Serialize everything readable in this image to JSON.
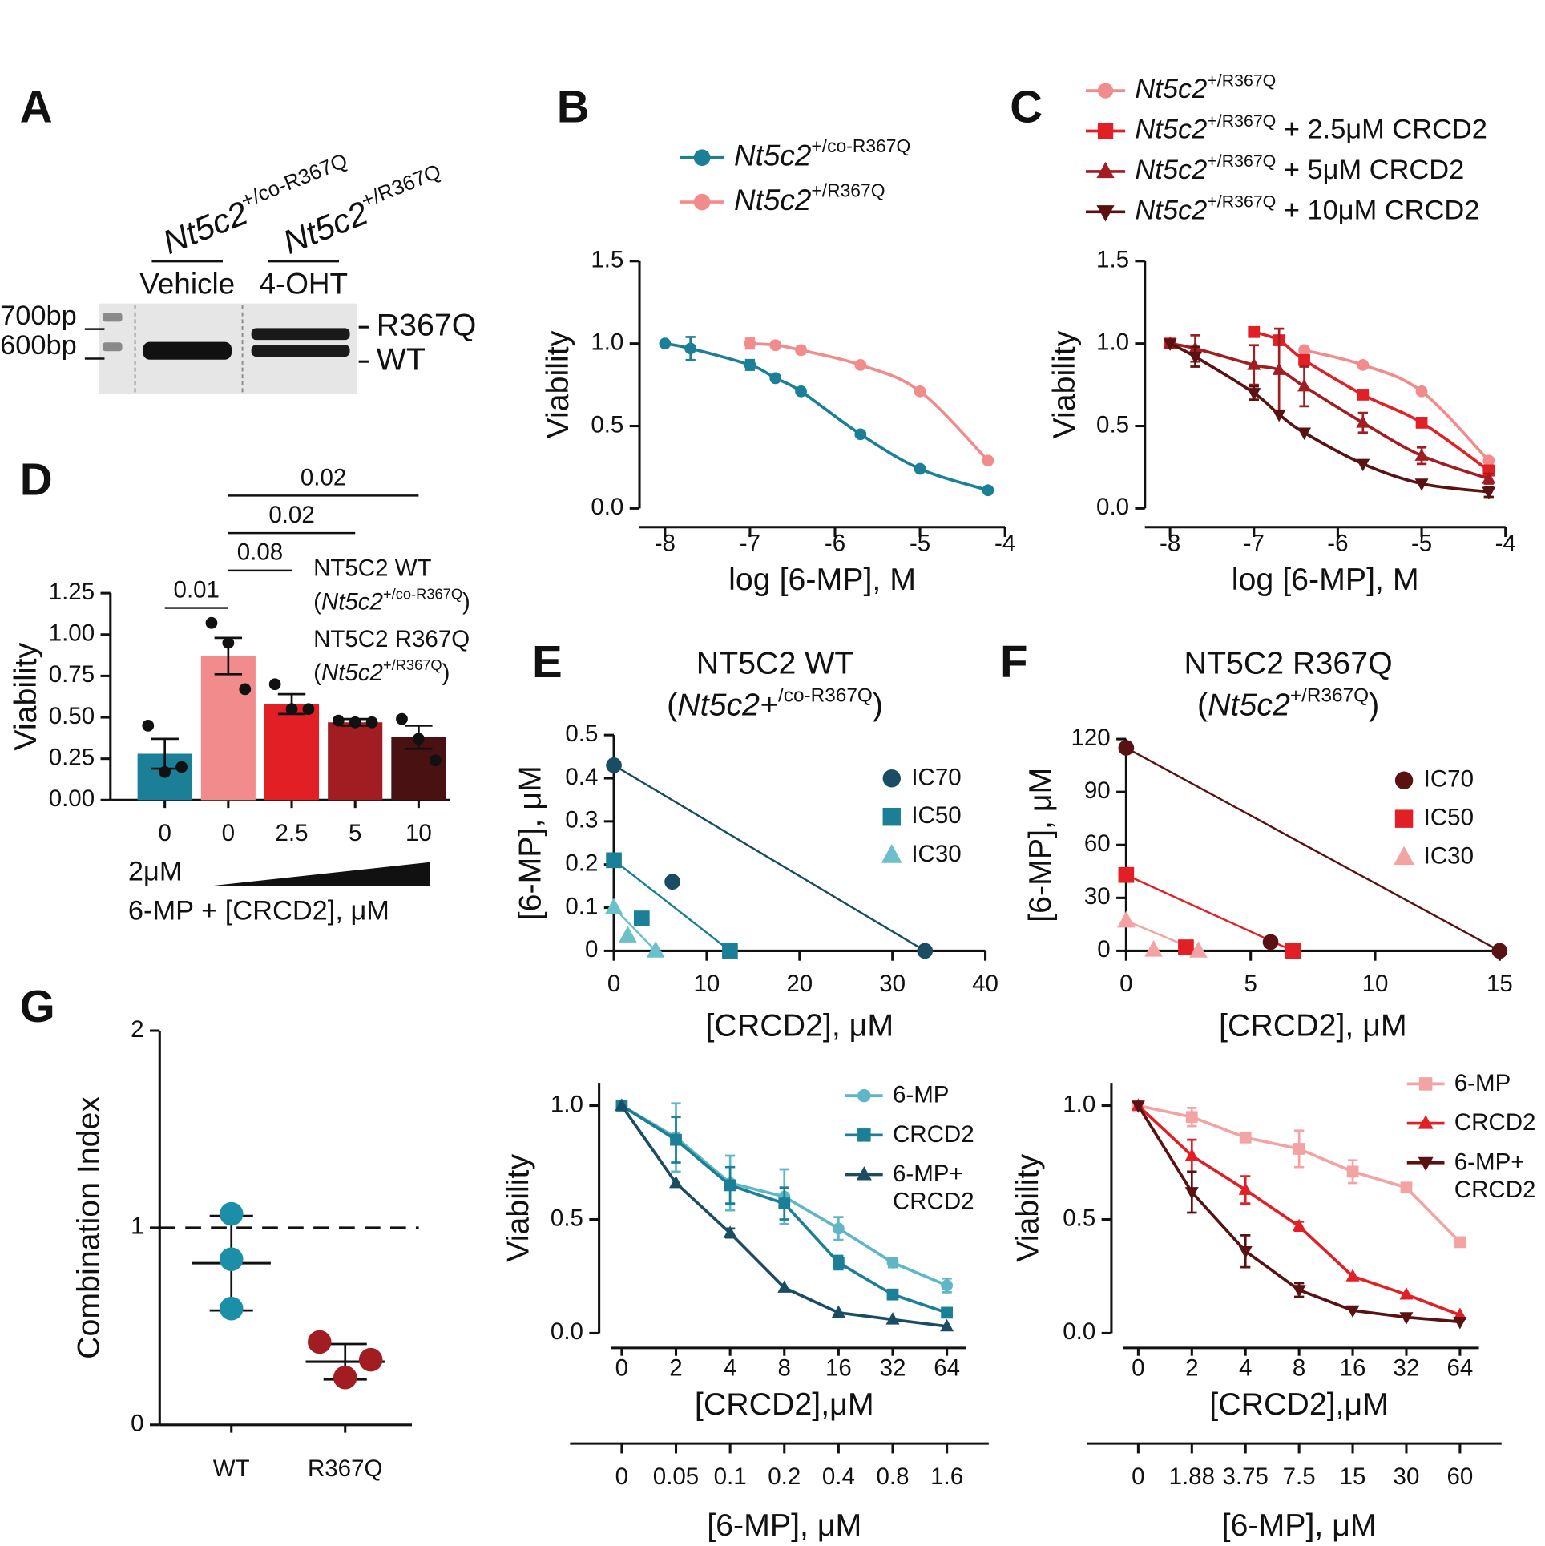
{
  "gel": {
    "panel": "A",
    "lanes": [
      {
        "genotype": "Nt5c2",
        "superscript": "+/co-R367Q",
        "treatment": "Vehicle"
      },
      {
        "genotype": "Nt5c2",
        "superscript": "+/R367Q",
        "treatment": "4-OHT"
      }
    ],
    "ladder": [
      "700bp",
      "600bp"
    ],
    "bands": [
      "R367Q",
      "WT"
    ]
  },
  "chart_data": [
    {
      "panel": "B",
      "type": "line",
      "curve": "smooth",
      "x": [
        -8,
        -7.7,
        -7,
        -6.7,
        -6.4,
        -5.7,
        -5,
        -4.2
      ],
      "xlim": [
        -8.3,
        -4
      ],
      "xticks": [
        -8,
        -7,
        -6,
        -5,
        -4
      ],
      "ylim": [
        0,
        1.5
      ],
      "yticks": [
        {
          "value": 0,
          "label": "0.0"
        },
        0.5,
        {
          "value": 1,
          "label": "1.0"
        },
        1.5
      ],
      "xlabel": "log [6-MP], M",
      "ylabel": "Viability",
      "series": [
        {
          "name": "Nt5c2",
          "superscript": "+/co-R367Q",
          "color": "#1b7f97",
          "marker": "circle",
          "values": [
            1,
            0.97,
            0.87,
            0.79,
            0.71,
            0.45,
            0.24,
            0.11
          ],
          "errors": [
            null,
            0.07,
            0.03,
            null,
            null,
            null,
            null,
            null
          ]
        },
        {
          "name": "Nt5c2",
          "superscript": "+/R367Q",
          "color": "#f28b8b",
          "marker": "circle",
          "values": [
            null,
            null,
            1,
            0.99,
            0.96,
            0.87,
            0.71,
            0.29
          ],
          "errors": [
            null,
            null,
            0.03,
            null,
            0.02,
            null,
            null,
            null
          ]
        }
      ]
    },
    {
      "panel": "C",
      "type": "line",
      "curve": "smooth",
      "x": [
        -8,
        -7.7,
        -7,
        -6.7,
        -6.4,
        -5.7,
        -5,
        -4.2
      ],
      "xlim": [
        -8.3,
        -4
      ],
      "xticks": [
        -8,
        -7,
        -6,
        -5,
        -4
      ],
      "ylim": [
        0,
        1.5
      ],
      "yticks": [
        {
          "value": 0,
          "label": "0.0"
        },
        0.5,
        {
          "value": 1,
          "label": "1.0"
        },
        1.5
      ],
      "xlabel": "log [6-MP], M",
      "ylabel": "Viability",
      "series": [
        {
          "name": "Nt5c2",
          "superscript": "+/R367Q",
          "color": "#f28b8b",
          "marker": "circle",
          "values": [
            1,
            null,
            null,
            null,
            0.96,
            0.87,
            0.71,
            0.29
          ],
          "errors": [
            null,
            null,
            null,
            null,
            null,
            null,
            null,
            null
          ]
        },
        {
          "name": "Nt5c2",
          "superscript": "+/R367Q",
          "suffix": " + 2.5μM CRCD2",
          "color": "#e31f26",
          "marker": "square",
          "values": [
            1,
            null,
            1.07,
            1.02,
            0.9,
            0.69,
            0.52,
            0.23
          ],
          "errors": [
            null,
            null,
            null,
            null,
            null,
            null,
            null,
            0.03
          ]
        },
        {
          "name": "Nt5c2",
          "superscript": "+/R367Q",
          "suffix": " + 5μM CRCD2",
          "color": "#a21d22",
          "marker": "triangle",
          "values": [
            1,
            0.97,
            0.87,
            0.84,
            0.74,
            0.52,
            0.32,
            0.18
          ],
          "errors": [
            null,
            0.08,
            0.12,
            0.25,
            0.12,
            0.06,
            0.05,
            0.03
          ]
        },
        {
          "name": "Nt5c2",
          "superscript": "+/R367Q",
          "suffix": " + 10μM CRCD2",
          "color": "#5a1112",
          "marker": "triangle-down",
          "values": [
            1,
            0.92,
            0.7,
            0.57,
            0.46,
            0.27,
            0.15,
            0.1
          ],
          "errors": [
            null,
            0.06,
            0.04,
            null,
            null,
            null,
            null,
            0.03
          ]
        }
      ]
    },
    {
      "panel": "D",
      "type": "bar",
      "categories": [
        "0",
        "0",
        "2.5",
        "5",
        "10"
      ],
      "values": [
        0.28,
        0.87,
        0.58,
        0.47,
        0.38
      ],
      "errors": [
        0.09,
        0.11,
        0.06,
        0.02,
        0.07
      ],
      "points": [
        [
          0.45,
          0.17,
          0.2
        ],
        [
          1.07,
          0.95,
          0.67
        ],
        [
          0.7,
          0.55,
          0.55
        ],
        [
          0.48,
          0.47,
          0.47
        ],
        [
          0.49,
          0.37,
          0.24
        ]
      ],
      "colors": [
        "#1b7f97",
        "#f28b8b",
        "#e31f26",
        "#a21d22",
        "#4a1112"
      ],
      "ylim": [
        0,
        1.25
      ],
      "yticks": [
        {
          "value": 0,
          "label": "0.00"
        },
        0.25,
        {
          "value": 0.5,
          "label": "0.50"
        },
        0.75,
        {
          "value": 1,
          "label": "1.00"
        },
        1.25
      ],
      "ylabel": "Viability",
      "dose_label": "2μM",
      "xlabel": "6-MP + [CRCD2], μM",
      "comparisons": [
        {
          "pair": [
            0,
            1
          ],
          "label": "0.01"
        },
        {
          "pair": [
            1,
            2
          ],
          "label": "0.08"
        },
        {
          "pair": [
            1,
            3
          ],
          "label": "0.02"
        },
        {
          "pair": [
            1,
            4
          ],
          "label": "0.02"
        }
      ],
      "groups_legend": [
        {
          "title": "NT5C2 WT",
          "prefix": "(",
          "name": "Nt5c2",
          "superscript": "+/co-R367Q",
          "suffix": ")",
          "color": "#1b7f97"
        },
        {
          "title": "NT5C2 R367Q",
          "prefix": "(",
          "name": "Nt5c2",
          "superscript": "+/R367Q",
          "suffix": ")",
          "color": "#d91f26"
        }
      ]
    },
    {
      "panel": "E",
      "type": "scatter",
      "title": "NT5C2 WT",
      "subtitle": {
        "prefix": "(",
        "name": "Nt5c2+",
        "superscript": "/co-R367Q",
        "suffix": ")"
      },
      "title_color": "#1b6f8a",
      "xlim": [
        0,
        40
      ],
      "xticks": [
        0,
        10,
        20,
        30,
        40
      ],
      "ylim": [
        0,
        0.5
      ],
      "yticks": [
        0,
        0.1,
        0.2,
        0.3,
        0.4,
        0.5
      ],
      "xlabel": "[CRCD2], μM",
      "ylabel": "[6-MP], μM",
      "series": [
        {
          "name": "IC70",
          "color": "#1a4d63",
          "marker": "circle",
          "x": [
            0,
            33.5,
            6.3
          ],
          "values": [
            0.43,
            0,
            0.16
          ]
        },
        {
          "name": "IC50",
          "color": "#1b7f97",
          "marker": "square",
          "x": [
            0,
            12.5,
            3
          ],
          "values": [
            0.21,
            0,
            0.075
          ]
        },
        {
          "name": "IC30",
          "color": "#6cc0cc",
          "marker": "triangle",
          "x": [
            0,
            4.5,
            1.5
          ],
          "values": [
            0.1,
            0,
            0.035
          ]
        }
      ]
    },
    {
      "panel": "F",
      "type": "scatter",
      "title": "NT5C2 R367Q",
      "subtitle": {
        "prefix": "(",
        "name": "Nt5c2",
        "superscript": "+/R367Q",
        "suffix": ")"
      },
      "title_color": "#b01e24",
      "xlim": [
        0,
        15
      ],
      "xticks": [
        0,
        5,
        10,
        15
      ],
      "ylim": [
        0,
        120
      ],
      "yticks": [
        0,
        30,
        60,
        90,
        120
      ],
      "xlabel": "[CRCD2], μM",
      "ylabel": "[6-MP], μM",
      "series": [
        {
          "name": "IC70",
          "color": "#5a1112",
          "marker": "circle",
          "x": [
            0,
            15,
            5.8
          ],
          "values": [
            115,
            0,
            5
          ]
        },
        {
          "name": "IC50",
          "color": "#e31f26",
          "marker": "square",
          "x": [
            0,
            6.7,
            2.4
          ],
          "values": [
            43,
            0,
            2
          ]
        },
        {
          "name": "IC30",
          "color": "#f4a3a3",
          "marker": "triangle",
          "x": [
            0,
            2.9,
            1.1
          ],
          "values": [
            17,
            0,
            0.5
          ]
        }
      ]
    },
    {
      "panel": "G",
      "type": "strip",
      "categories": [
        "WT",
        "R367Q"
      ],
      "points": [
        [
          1.07,
          0.84,
          0.59
        ],
        [
          0.42,
          0.24,
          0.33
        ]
      ],
      "means": [
        0.82,
        0.32
      ],
      "errors": [
        0.24,
        0.09
      ],
      "colors": [
        "#1b8fa8",
        "#a21d22"
      ],
      "ylim": [
        0,
        2
      ],
      "yticks": [
        0,
        1,
        2
      ],
      "reference_line": 1,
      "ylabel": "Combination Index"
    },
    {
      "type": "line",
      "curve": "straight",
      "categories": [
        "0",
        "2",
        "4",
        "8",
        "16",
        "32",
        "64"
      ],
      "x2_categories": [
        "0",
        "0.05",
        "0.1",
        "0.2",
        "0.4",
        "0.8",
        "1.6"
      ],
      "ylim": [
        0,
        1.1
      ],
      "yticks": [
        {
          "value": 0,
          "label": "0.0"
        },
        0.5,
        {
          "value": 1,
          "label": "1.0"
        }
      ],
      "xlabel": "[CRCD2],μM",
      "x2label": "[6-MP], μM",
      "ylabel": "Viability",
      "series": [
        {
          "name": "6-MP",
          "color": "#5fb7c6",
          "marker": "circle",
          "values": [
            1,
            0.86,
            0.66,
            0.6,
            0.46,
            0.31,
            0.21
          ],
          "errors": [
            null,
            0.15,
            0.12,
            0.12,
            0.05,
            0.02,
            0.03
          ]
        },
        {
          "name": "CRCD2",
          "color": "#1b7f97",
          "marker": "square",
          "values": [
            1,
            0.85,
            0.65,
            0.57,
            0.31,
            0.17,
            0.09
          ],
          "errors": [
            null,
            0.1,
            0.08,
            0.07,
            0.03,
            0.02,
            null
          ]
        },
        {
          "name": "6-MP+ CRCD2",
          "color": "#1a4d63",
          "marker": "triangle",
          "values": [
            1,
            0.66,
            0.44,
            0.2,
            0.09,
            0.06,
            0.03
          ],
          "errors": [
            null,
            null,
            0.02,
            null,
            null,
            null,
            null
          ]
        }
      ]
    },
    {
      "type": "line",
      "curve": "straight",
      "categories": [
        "0",
        "2",
        "4",
        "8",
        "16",
        "32",
        "64"
      ],
      "x2_categories": [
        "0",
        "1.88",
        "3.75",
        "7.5",
        "15",
        "30",
        "60"
      ],
      "ylim": [
        0,
        1.1
      ],
      "yticks": [
        {
          "value": 0,
          "label": "0.0"
        },
        0.5,
        {
          "value": 1,
          "label": "1.0"
        }
      ],
      "xlabel": "[CRCD2],μM",
      "x2label": "[6-MP], μM",
      "ylabel": "Viability",
      "series": [
        {
          "name": "6-MP",
          "color": "#f4a3a3",
          "marker": "square",
          "values": [
            1,
            0.95,
            0.86,
            0.81,
            0.71,
            0.64,
            0.4
          ],
          "errors": [
            null,
            0.04,
            0.02,
            0.08,
            0.05,
            null,
            0.02
          ]
        },
        {
          "name": "CRCD2",
          "color": "#e31f26",
          "marker": "triangle",
          "values": [
            1,
            0.78,
            0.63,
            0.47,
            0.25,
            0.17,
            0.08
          ],
          "errors": [
            null,
            0.07,
            0.06,
            0.02,
            null,
            null,
            null
          ]
        },
        {
          "name": "6-MP+ CRCD2",
          "color": "#5a1112",
          "marker": "triangle-down",
          "values": [
            1,
            0.62,
            0.36,
            0.19,
            0.1,
            0.07,
            0.05
          ],
          "errors": [
            null,
            0.09,
            0.07,
            0.03,
            null,
            null,
            null
          ]
        }
      ]
    }
  ]
}
